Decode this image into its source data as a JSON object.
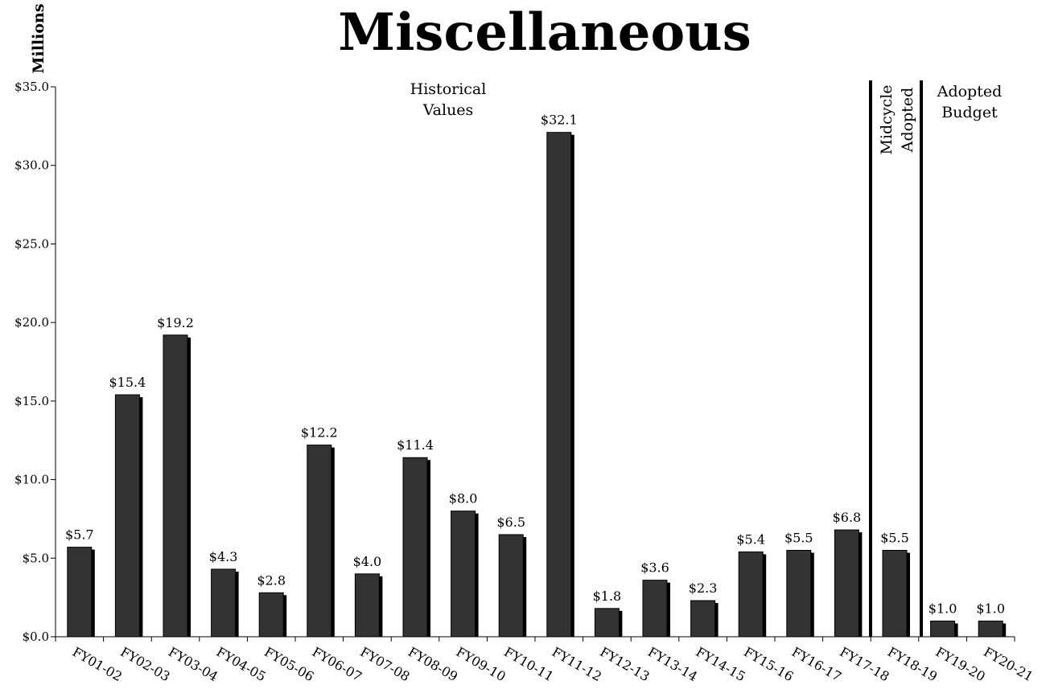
{
  "chart_data": {
    "type": "bar",
    "title": "Miscellaneous",
    "ylabel": "Millions",
    "xlabel": "",
    "ylim": [
      0,
      35
    ],
    "yticks": [
      0,
      5,
      10,
      15,
      20,
      25,
      30,
      35
    ],
    "ytick_labels": [
      "$0.0",
      "$5.0",
      "$10.0",
      "$15.0",
      "$20.0",
      "$25.0",
      "$30.0",
      "$35.0"
    ],
    "categories": [
      "FY01-02",
      "FY02-03",
      "FY03-04",
      "FY04-05",
      "FY05-06",
      "FY06-07",
      "FY07-08",
      "FY08-09",
      "FY09-10",
      "FY10-11",
      "FY11-12",
      "FY12-13",
      "FY13-14",
      "FY14-15",
      "FY15-16",
      "FY16-17",
      "FY17-18",
      "FY18-19",
      "FY19-20",
      "FY20-21"
    ],
    "values": [
      5.7,
      15.4,
      19.2,
      4.3,
      2.8,
      12.2,
      4.0,
      11.4,
      8.0,
      6.5,
      32.1,
      1.8,
      3.6,
      2.3,
      5.4,
      5.5,
      6.8,
      5.5,
      1.0,
      1.0
    ],
    "data_labels": [
      "$5.7",
      "$15.4",
      "$19.2",
      "$4.3",
      "$2.8",
      "$12.2",
      "$4.0",
      "$11.4",
      "$8.0",
      "$6.5",
      "$32.1",
      "$1.8",
      "$3.6",
      "$2.3",
      "$5.4",
      "$5.5",
      "$6.8",
      "$5.5",
      "$1.0",
      "$1.0"
    ],
    "bar_color": "#333333",
    "shadow_color": "#000000",
    "grid": false,
    "legend": "none",
    "annotations": {
      "historical": [
        "Historical",
        "Values"
      ],
      "midcycle": [
        "Midcycle",
        "Adopted"
      ],
      "adopted": [
        "Adopted",
        "Budget"
      ]
    }
  }
}
